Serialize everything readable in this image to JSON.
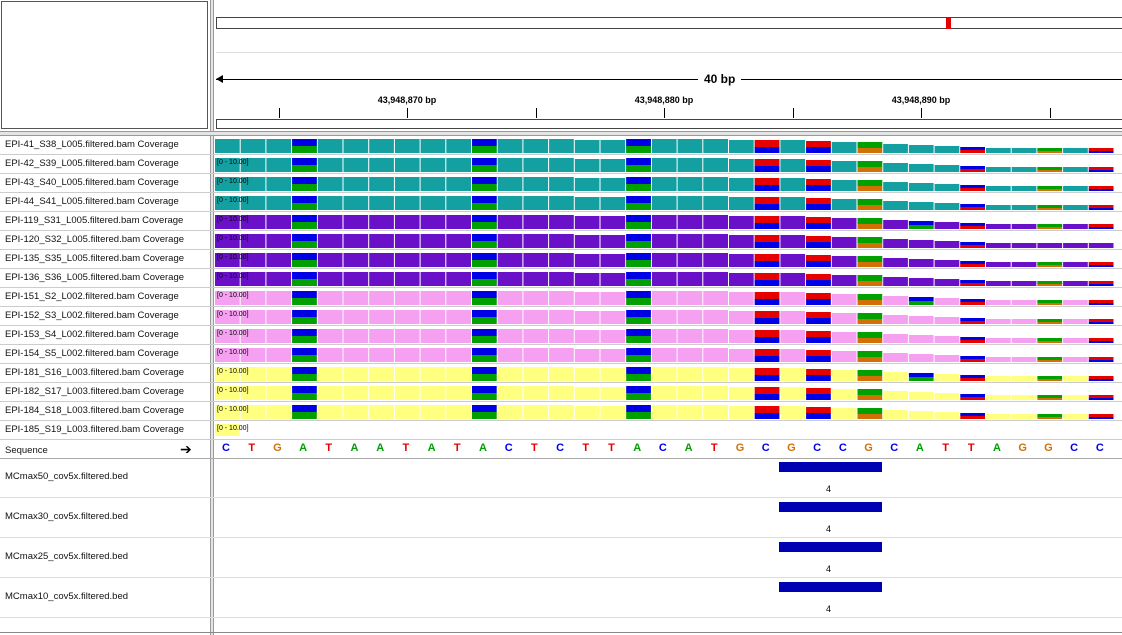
{
  "ruler": {
    "span_label": "40 bp",
    "ticks": [
      "43,948,870 bp",
      "43,948,880 bp",
      "43,948,890 bp"
    ]
  },
  "colors": {
    "A": "#00a000",
    "C": "#0000e6",
    "G": "#d17105",
    "T": "#e60000",
    "bed": "#0000b3"
  },
  "coverage_tracks": [
    {
      "name": "EPI-41_S38_L005.filtered.bam Coverage",
      "range": "",
      "color": "#14a0a0",
      "profile": "A"
    },
    {
      "name": "EPI-42_S39_L005.filtered.bam Coverage",
      "range": "[0 - 10.00]",
      "color": "#14a0a0",
      "profile": "A"
    },
    {
      "name": "EPI-43_S40_L005.filtered.bam Coverage",
      "range": "[0 - 10.00]",
      "color": "#14a0a0",
      "profile": "B"
    },
    {
      "name": "EPI-44_S41_L005.filtered.bam Coverage",
      "range": "[0 - 10.00]",
      "color": "#14a0a0",
      "profile": "B"
    },
    {
      "name": "EPI-119_S31_L005.filtered.bam Coverage",
      "range": "[0 - 10.00]",
      "color": "#6a10c8",
      "profile": "C"
    },
    {
      "name": "EPI-120_S32_L005.filtered.bam Coverage",
      "range": "[0 - 10.00]",
      "color": "#6a10c8",
      "profile": "D"
    },
    {
      "name": "EPI-135_S35_L005.filtered.bam Coverage",
      "range": "[0 - 10.00]",
      "color": "#6a10c8",
      "profile": "A"
    },
    {
      "name": "EPI-136_S36_L005.filtered.bam Coverage",
      "range": "[0 - 10.00]",
      "color": "#6a10c8",
      "profile": "A"
    },
    {
      "name": "EPI-151_S2_L002.filtered.bam Coverage",
      "range": "[0 - 10.00]",
      "color": "#f5a0f0",
      "profile": "C"
    },
    {
      "name": "EPI-152_S3_L002.filtered.bam Coverage",
      "range": "[0 - 10.00]",
      "color": "#f5a0f0",
      "profile": "A"
    },
    {
      "name": "EPI-153_S4_L002.filtered.bam Coverage",
      "range": "[0 - 10.00]",
      "color": "#f5a0f0",
      "profile": "A"
    },
    {
      "name": "EPI-154_S5_L002.filtered.bam Coverage",
      "range": "[0 - 10.00]",
      "color": "#f5a0f0",
      "profile": "B"
    },
    {
      "name": "EPI-181_S16_L003.filtered.bam Coverage",
      "range": "[0 - 10.00]",
      "color": "#ffff80",
      "profile": "C"
    },
    {
      "name": "EPI-182_S17_L003.filtered.bam Coverage",
      "range": "[0 - 10.00]",
      "color": "#ffff80",
      "profile": "A"
    },
    {
      "name": "EPI-184_S18_L003.filtered.bam Coverage",
      "range": "[0 - 10.00]",
      "color": "#ffff80",
      "profile": "A"
    },
    {
      "name": "EPI-185_S19_L003.filtered.bam Coverage",
      "range": "[0 - 10.00]",
      "color": "#ffff80",
      "profile": "E"
    }
  ],
  "sequence": {
    "label": "Sequence",
    "bases": [
      "C",
      "T",
      "G",
      "A",
      "T",
      "A",
      "A",
      "T",
      "A",
      "T",
      "A",
      "C",
      "T",
      "C",
      "T",
      "T",
      "A",
      "C",
      "A",
      "T",
      "G",
      "C",
      "G",
      "C",
      "C",
      "G",
      "C",
      "A",
      "T",
      "T",
      "A",
      "G",
      "G",
      "C",
      "C"
    ]
  },
  "bed_tracks": [
    {
      "name": "MCmax50_cov5x.filtered.bed",
      "score": "4"
    },
    {
      "name": "MCmax30_cov5x.filtered.bed",
      "score": "4"
    },
    {
      "name": "MCmax25_cov5x.filtered.bed",
      "score": "4"
    },
    {
      "name": "MCmax10_cov5x.filtered.bed",
      "score": "4"
    }
  ]
}
